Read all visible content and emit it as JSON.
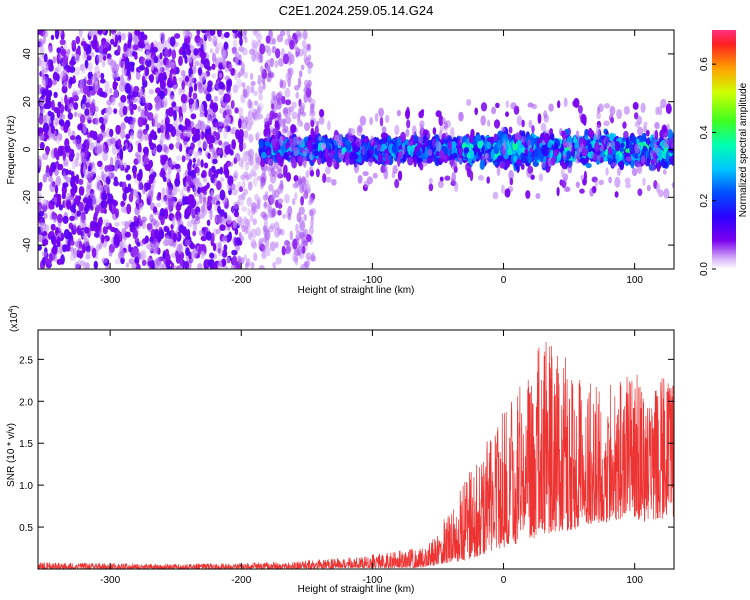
{
  "chart_data": [
    {
      "type": "heatmap",
      "title": "C2E1.2024.259.05.14.G24",
      "xlabel": "Height of straight line (km)",
      "ylabel": "Frequency (Hz)",
      "xlim": [
        -355,
        130
      ],
      "ylim": [
        -50,
        50
      ],
      "xticks": [
        "-300",
        "-200",
        "-100",
        "0",
        "100"
      ],
      "yticks": [
        "40",
        "20",
        "0",
        "-20",
        "-40"
      ],
      "colorbar": {
        "label": "Normalized spectral amplitude",
        "range": [
          0,
          0.7
        ],
        "ticks": [
          "0.0",
          "0.2",
          "0.4",
          "0.6"
        ]
      },
      "regions": [
        {
          "x": [
            -355,
            -185
          ],
          "freq_spread": 50,
          "mean_amplitude": 0.08
        },
        {
          "x": [
            -185,
            -30
          ],
          "freq_center": 0,
          "freq_half_width": 8,
          "mean_amplitude": 0.25
        },
        {
          "x": [
            -30,
            130
          ],
          "freq_center": 0,
          "freq_half_width": 10,
          "mean_amplitude": 0.3
        }
      ]
    },
    {
      "type": "line",
      "xlabel": "Height of straight line (km)",
      "ylabel": "SNR (10 * v/v)",
      "yscale_label": "(x10",
      "yscale_exp": "4",
      "yscale_close": ")",
      "xlim": [
        -355,
        130
      ],
      "ylim": [
        0,
        2.85
      ],
      "xticks": [
        "-300",
        "-200",
        "-100",
        "0",
        "100"
      ],
      "yticks": [
        "0.5",
        "1.0",
        "1.5",
        "2.0",
        "2.5"
      ],
      "color": "#ee3333",
      "envelope": {
        "x": [
          -355,
          -300,
          -250,
          -200,
          -160,
          -120,
          -100,
          -80,
          -60,
          -50,
          -40,
          -30,
          -20,
          -10,
          0,
          10,
          20,
          30,
          40,
          50,
          60,
          70,
          80,
          90,
          100,
          110,
          120,
          130
        ],
        "max": [
          0.08,
          0.07,
          0.06,
          0.07,
          0.09,
          0.14,
          0.18,
          0.22,
          0.25,
          0.45,
          0.8,
          1.1,
          1.3,
          1.6,
          1.9,
          2.1,
          2.4,
          2.8,
          2.6,
          2.5,
          2.3,
          2.2,
          2.2,
          2.3,
          2.4,
          2.0,
          2.3,
          2.2
        ],
        "min": [
          0.0,
          0.0,
          0.0,
          0.0,
          0.0,
          0.01,
          0.01,
          0.01,
          0.02,
          0.05,
          0.08,
          0.1,
          0.15,
          0.2,
          0.25,
          0.3,
          0.35,
          0.4,
          0.45,
          0.45,
          0.5,
          0.55,
          0.55,
          0.6,
          0.6,
          0.55,
          0.6,
          0.6
        ]
      }
    }
  ]
}
